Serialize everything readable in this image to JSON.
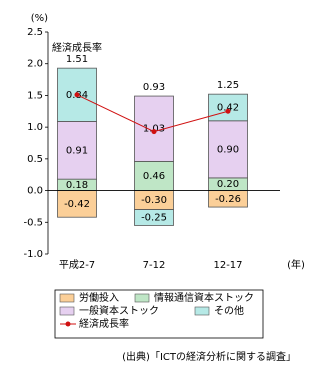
{
  "chart_data": {
    "type": "bar",
    "stacked": true,
    "y_unit": "(%)",
    "x_unit": "(年)",
    "categories": [
      "平成2‐7",
      "7‐12",
      "12‐17"
    ],
    "ylim": [
      -1.0,
      2.5
    ],
    "yticks": [
      {
        "value": 2.5,
        "label": "2.5"
      },
      {
        "value": 2.0,
        "label": "2.0"
      },
      {
        "value": 1.5,
        "label": "1.5"
      },
      {
        "value": 1.0,
        "label": "1.0"
      },
      {
        "value": 0.5,
        "label": "0.5"
      },
      {
        "value": 0.0,
        "label": "0.0"
      },
      {
        "value": -0.5,
        "label": "-0.5"
      },
      {
        "value": -1.0,
        "label": "-1.0"
      }
    ],
    "series": [
      {
        "name": "労働投入",
        "color": "#fbcf98",
        "values": [
          -0.42,
          -0.3,
          -0.26
        ],
        "value_labels": [
          "-0.42",
          "-0.30",
          "-0.26"
        ]
      },
      {
        "name": "情報通信資本ストック",
        "color": "#bfe6c6",
        "values": [
          0.18,
          0.46,
          0.2
        ],
        "value_labels": [
          "0.18",
          "0.46",
          "0.20"
        ]
      },
      {
        "name": "一般資本ストック",
        "color": "#e6d0f0",
        "values": [
          0.91,
          1.03,
          0.9
        ],
        "value_labels": [
          "0.91",
          "1.03",
          "0.90"
        ]
      },
      {
        "name": "その他",
        "color": "#b6e9e6",
        "values": [
          0.84,
          -0.25,
          0.42
        ],
        "value_labels": [
          "0.84",
          "-0.25",
          "0.42"
        ]
      },
      {
        "name": "経済成長率",
        "type": "line",
        "color": "#d01010",
        "values": [
          1.51,
          0.93,
          1.25
        ],
        "value_labels": [
          "1.51",
          "0.93",
          "1.25"
        ]
      }
    ],
    "annotation": "経済成長率",
    "source": "(出典)「ICTの経済分析に関する調査」"
  }
}
